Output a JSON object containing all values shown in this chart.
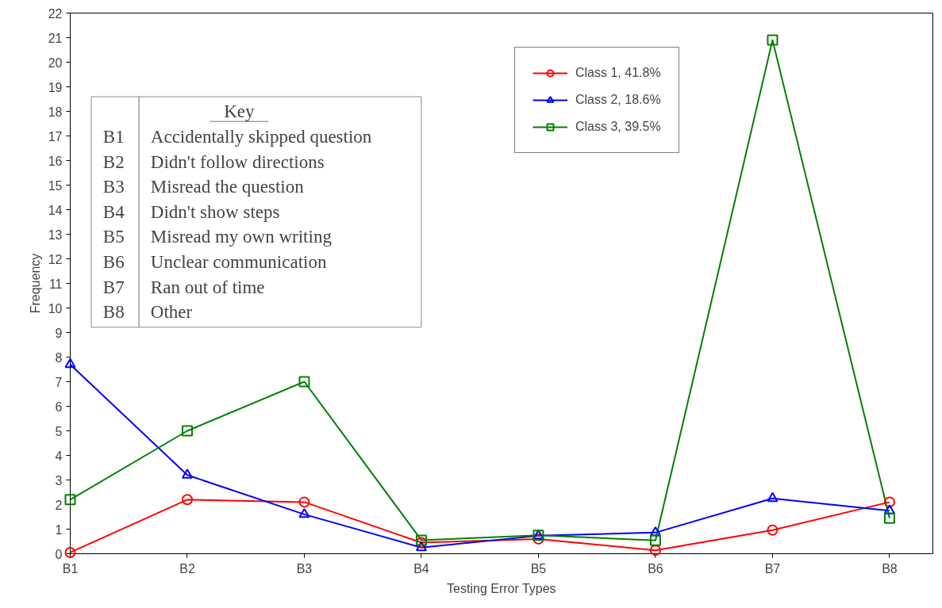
{
  "chart_data": {
    "type": "line",
    "xlabel": "Testing Error Types",
    "ylabel": "Frequency",
    "categories": [
      "B1",
      "B2",
      "B3",
      "B4",
      "B5",
      "B6",
      "B7",
      "B8"
    ],
    "series": [
      {
        "name": "Class 1, 41.8%",
        "color": "#ff0000",
        "marker": "circle",
        "values": [
          0.05,
          2.2,
          2.1,
          0.45,
          0.6,
          0.14,
          0.96,
          2.1
        ]
      },
      {
        "name": "Class 2, 18.6%",
        "color": "#0000ff",
        "marker": "triangle",
        "values": [
          7.7,
          3.2,
          1.6,
          0.25,
          0.73,
          0.86,
          2.25,
          1.75
        ]
      },
      {
        "name": "Class 3, 39.5%",
        "color": "#008000",
        "marker": "square",
        "values": [
          2.2,
          5.0,
          7.0,
          0.55,
          0.75,
          0.54,
          20.9,
          1.44
        ]
      }
    ],
    "ylim": [
      0,
      22
    ],
    "yticks": [
      0,
      1,
      2,
      3,
      4,
      5,
      6,
      7,
      8,
      9,
      10,
      11,
      12,
      13,
      14,
      15,
      16,
      17,
      18,
      19,
      20,
      21,
      22
    ],
    "grid": false,
    "legend": "top right",
    "line_style": "solid",
    "annotations": [
      "Key",
      "B1 Accidentally skipped question",
      "B2 Didn't follow directions",
      "B3 Misread the question",
      "B4 Didn't show steps",
      "B5 Misread my own writing",
      "B6 Unclear communication",
      "B7 Ran out of time",
      "B8 Other"
    ]
  }
}
